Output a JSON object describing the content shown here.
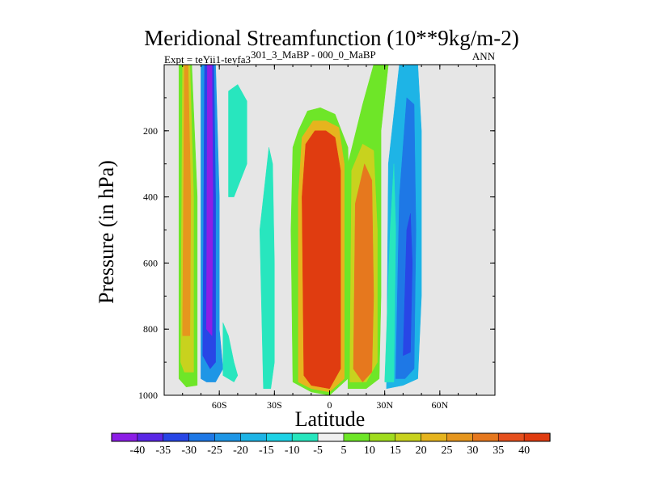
{
  "chart_data": {
    "type": "heatmap",
    "title": "Meridional Streamfunction (10**9kg/m-2)",
    "subtitle_left_prefix": "Expt = teYii1-teyfa3",
    "subtitle_left_sup": "301_3_MaBP - 000_0_MaBP",
    "subtitle_right": "ANN",
    "xlabel": "Latitude",
    "ylabel": "Pressure (in hPa)",
    "xlim": [
      -90,
      90
    ],
    "ylim": [
      1000,
      0
    ],
    "x_ticks": [
      {
        "value": -60,
        "label": "60S"
      },
      {
        "value": -30,
        "label": "30S"
      },
      {
        "value": 0,
        "label": "0"
      },
      {
        "value": 30,
        "label": "30N"
      },
      {
        "value": 60,
        "label": "60N"
      }
    ],
    "y_ticks": [
      {
        "value": 200,
        "label": "200"
      },
      {
        "value": 400,
        "label": "400"
      },
      {
        "value": 600,
        "label": "600"
      },
      {
        "value": 800,
        "label": "800"
      },
      {
        "value": 1000,
        "label": "1000"
      }
    ],
    "background_color": "#e6e6e6",
    "colorbar": {
      "labels": [
        "-40",
        "-35",
        "-30",
        "-25",
        "-20",
        "-15",
        "-10",
        "-5",
        "5",
        "10",
        "15",
        "20",
        "25",
        "30",
        "35",
        "40"
      ],
      "colors": [
        "#8c1ee6",
        "#5a28e6",
        "#2846e6",
        "#1e78e6",
        "#1e96e6",
        "#1eb4e6",
        "#1ed2e6",
        "#28e6be",
        "#f0f0f0",
        "#6ee628",
        "#a0dc1e",
        "#c8d21e",
        "#e6b41e",
        "#e6961e",
        "#e6781e",
        "#e6501e",
        "#e03c10"
      ]
    },
    "contour_bands": [
      {
        "name": "band-80s-outer",
        "color": "#6ee628",
        "points": [
          [
            -82,
            950
          ],
          [
            -82,
            0
          ],
          [
            -75,
            0
          ],
          [
            -72,
            400
          ],
          [
            -72,
            970
          ],
          [
            -78,
            975
          ]
        ]
      },
      {
        "name": "band-80s-mid",
        "color": "#c8d21e",
        "points": [
          [
            -81,
            900
          ],
          [
            -80,
            0
          ],
          [
            -76,
            0
          ],
          [
            -74,
            400
          ],
          [
            -74,
            930
          ],
          [
            -79,
            930
          ]
        ]
      },
      {
        "name": "band-80s-core",
        "color": "#e6961e",
        "points": [
          [
            -80,
            820
          ],
          [
            -79,
            0
          ],
          [
            -77,
            0
          ],
          [
            -75.5,
            400
          ],
          [
            -76,
            820
          ]
        ]
      },
      {
        "name": "band-65s-outer",
        "color": "#1e96e6",
        "points": [
          [
            -70,
            950
          ],
          [
            -70,
            0
          ],
          [
            -62,
            0
          ],
          [
            -60,
            400
          ],
          [
            -60,
            800
          ],
          [
            -58,
            920
          ],
          [
            -62,
            960
          ],
          [
            -67,
            960
          ]
        ]
      },
      {
        "name": "band-65s-mid",
        "color": "#2846e6",
        "points": [
          [
            -69,
            880
          ],
          [
            -68,
            0
          ],
          [
            -63,
            0
          ],
          [
            -62,
            400
          ],
          [
            -62,
            800
          ],
          [
            -62,
            900
          ],
          [
            -65,
            920
          ]
        ]
      },
      {
        "name": "band-65s-core",
        "color": "#8c1ee6",
        "points": [
          [
            -67,
            800
          ],
          [
            -66.5,
            0
          ],
          [
            -64,
            0
          ],
          [
            -63.5,
            400
          ],
          [
            -64,
            820
          ]
        ]
      },
      {
        "name": "band-60s-cyan",
        "color": "#28e6be",
        "points": [
          [
            -58,
            940
          ],
          [
            -58,
            780
          ],
          [
            -55,
            820
          ],
          [
            -52,
            900
          ],
          [
            -50,
            940
          ],
          [
            -52,
            960
          ]
        ]
      },
      {
        "name": "band-55s-upper",
        "color": "#28e6be",
        "points": [
          [
            -55,
            400
          ],
          [
            -55,
            80
          ],
          [
            -50,
            60
          ],
          [
            -45,
            110
          ],
          [
            -45,
            300
          ],
          [
            -52,
            400
          ]
        ]
      },
      {
        "name": "band-40s-cyan",
        "color": "#28e6be",
        "points": [
          [
            -36,
            980
          ],
          [
            -38,
            500
          ],
          [
            -33,
            250
          ],
          [
            -31,
            300
          ],
          [
            -30,
            600
          ],
          [
            -30,
            900
          ],
          [
            -32,
            980
          ]
        ]
      },
      {
        "name": "band-eq-outer",
        "color": "#6ee628",
        "points": [
          [
            -20,
            960
          ],
          [
            -21,
            500
          ],
          [
            -20,
            250
          ],
          [
            -17,
            200
          ],
          [
            -12,
            140
          ],
          [
            -5,
            130
          ],
          [
            3,
            150
          ],
          [
            10,
            250
          ],
          [
            11,
            500
          ],
          [
            10,
            950
          ],
          [
            0,
            1000
          ],
          [
            -10,
            990
          ]
        ]
      },
      {
        "name": "band-eq-mid",
        "color": "#e6b41e",
        "points": [
          [
            -17,
            960
          ],
          [
            -17,
            400
          ],
          [
            -15,
            220
          ],
          [
            -9,
            170
          ],
          [
            -2,
            170
          ],
          [
            5,
            190
          ],
          [
            8,
            300
          ],
          [
            8,
            950
          ],
          [
            0,
            990
          ],
          [
            -10,
            980
          ]
        ]
      },
      {
        "name": "band-eq-core",
        "color": "#e03c10",
        "points": [
          [
            -14,
            940
          ],
          [
            -15,
            400
          ],
          [
            -13,
            240
          ],
          [
            -8,
            200
          ],
          [
            -2,
            200
          ],
          [
            3,
            220
          ],
          [
            6,
            320
          ],
          [
            6,
            920
          ],
          [
            0,
            980
          ],
          [
            -10,
            970
          ]
        ]
      },
      {
        "name": "band-15n-green",
        "color": "#6ee628",
        "points": [
          [
            10,
            980
          ],
          [
            10,
            300
          ],
          [
            18,
            120
          ],
          [
            24,
            0
          ],
          [
            32,
            0
          ],
          [
            28,
            200
          ],
          [
            28,
            700
          ],
          [
            27,
            950
          ],
          [
            20,
            980
          ]
        ]
      },
      {
        "name": "band-15n-yellow",
        "color": "#c8d21e",
        "points": [
          [
            11,
            960
          ],
          [
            12,
            320
          ],
          [
            18,
            240
          ],
          [
            24,
            260
          ],
          [
            26,
            500
          ],
          [
            26,
            900
          ],
          [
            20,
            960
          ]
        ]
      },
      {
        "name": "band-15n-core",
        "color": "#e6781e",
        "points": [
          [
            13,
            920
          ],
          [
            14,
            420
          ],
          [
            19,
            300
          ],
          [
            23,
            350
          ],
          [
            24,
            700
          ],
          [
            23,
            930
          ],
          [
            18,
            960
          ]
        ]
      },
      {
        "name": "band-40n-outer",
        "color": "#1eb4e6",
        "points": [
          [
            31,
            980
          ],
          [
            32,
            300
          ],
          [
            38,
            0
          ],
          [
            48,
            0
          ],
          [
            50,
            200
          ],
          [
            50,
            700
          ],
          [
            48,
            950
          ],
          [
            40,
            970
          ]
        ]
      },
      {
        "name": "band-40n-mid",
        "color": "#1e78e6",
        "points": [
          [
            36,
            950
          ],
          [
            38,
            400
          ],
          [
            42,
            100
          ],
          [
            46,
            120
          ],
          [
            47,
            500
          ],
          [
            46,
            920
          ],
          [
            41,
            950
          ]
        ]
      },
      {
        "name": "band-40n-core",
        "color": "#2846e6",
        "points": [
          [
            40,
            880
          ],
          [
            42,
            500
          ],
          [
            44,
            450
          ],
          [
            45,
            600
          ],
          [
            44,
            870
          ]
        ]
      },
      {
        "name": "band-right-edge",
        "color": "#28e6be",
        "points": [
          [
            30,
            960
          ],
          [
            33,
            500
          ],
          [
            35,
            300
          ],
          [
            36,
            500
          ],
          [
            35,
            960
          ]
        ]
      }
    ]
  }
}
